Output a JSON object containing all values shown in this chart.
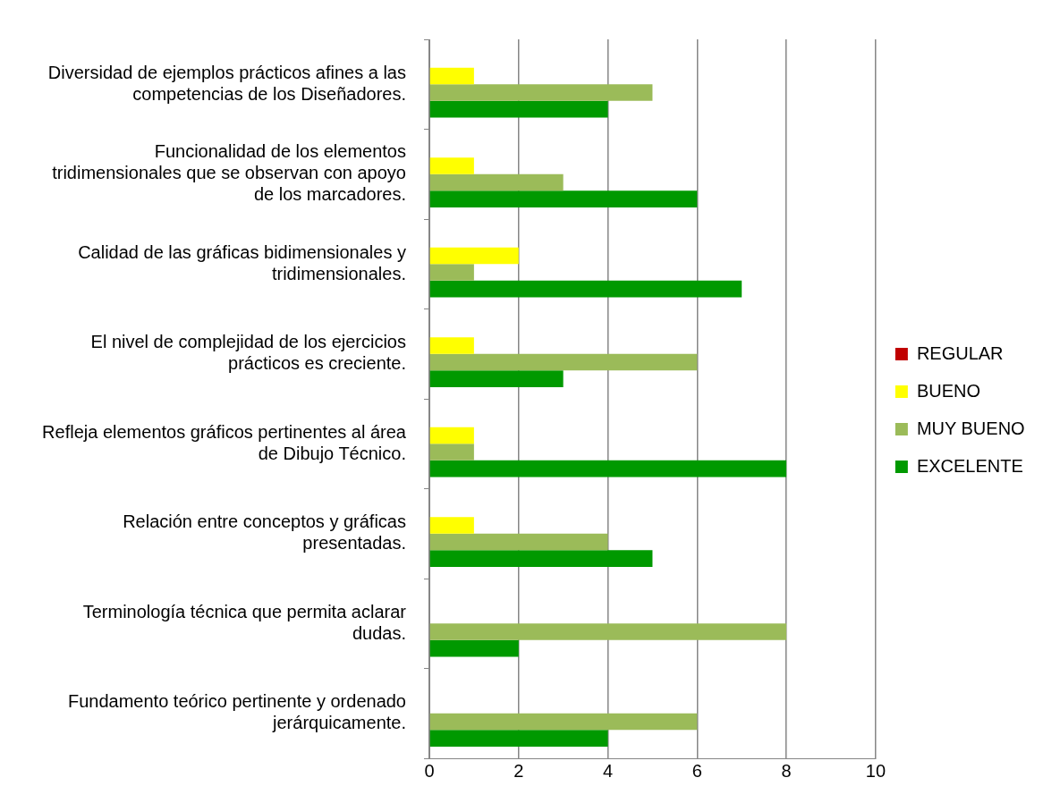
{
  "chart_data": {
    "type": "bar",
    "orientation": "horizontal",
    "categories": [
      "Diversidad de ejemplos prácticos afines a las competencias de los Diseñadores.",
      "Funcionalidad de los elementos tridimensionales que se observan con apoyo de los marcadores.",
      "Calidad de las gráficas bidimensionales y tridimensionales.",
      "El nivel de complejidad de los ejercicios prácticos es creciente.",
      "Refleja elementos gráficos pertinentes al área de Dibujo Técnico.",
      "Relación entre conceptos y gráficas presentadas.",
      "Terminología técnica que permita aclarar dudas.",
      "Fundamento teórico pertinente y ordenado jerárquicamente."
    ],
    "series": [
      {
        "name": "REGULAR",
        "color": "#c00000",
        "values": [
          0,
          0,
          0,
          0,
          0,
          0,
          0,
          0
        ]
      },
      {
        "name": "BUENO",
        "color": "#ffff00",
        "values": [
          1,
          1,
          2,
          1,
          1,
          1,
          0,
          0
        ]
      },
      {
        "name": "MUY BUENO",
        "color": "#9bbb59",
        "values": [
          5,
          3,
          1,
          6,
          1,
          4,
          8,
          6
        ]
      },
      {
        "name": "EXCELENTE",
        "color": "#009900",
        "values": [
          4,
          6,
          7,
          3,
          8,
          5,
          2,
          4
        ]
      }
    ],
    "xlim": [
      0,
      10
    ],
    "xticks": [
      0,
      2,
      4,
      6,
      8,
      10
    ],
    "grid": "x",
    "legend": "right"
  }
}
